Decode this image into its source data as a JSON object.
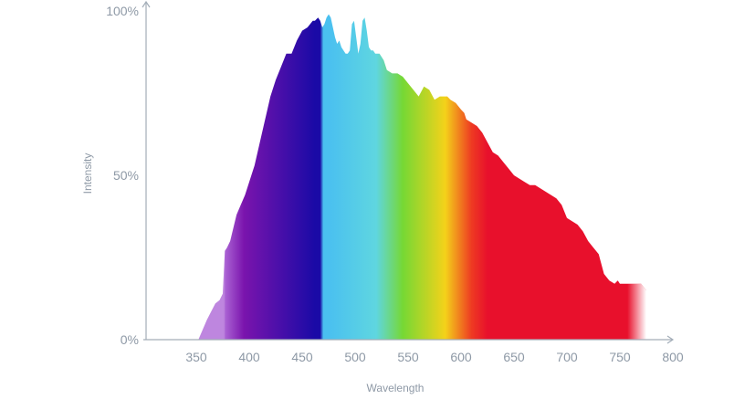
{
  "chart_data": {
    "type": "area",
    "title": "",
    "xlabel": "Wavelength",
    "ylabel": "Intensity",
    "xlim": [
      300,
      800
    ],
    "ylim": [
      0,
      100
    ],
    "x_ticks": [
      350,
      400,
      450,
      500,
      550,
      600,
      650,
      700,
      750,
      800
    ],
    "y_ticks": [
      0,
      50,
      100
    ],
    "y_tick_labels": [
      "0%",
      "50%",
      "100%"
    ],
    "grid": false,
    "legend": "none",
    "fill": "visible spectrum gradient (violet to red)",
    "spectrum_colors": [
      "#b06cd8",
      "#7a14ad",
      "#1a0aa6",
      "#4ac0f0",
      "#5fd6e0",
      "#76d834",
      "#f4d21a",
      "#ee3a22",
      "#e8102c"
    ],
    "series": [
      {
        "x": [
          352,
          360,
          368,
          372,
          375,
          377,
          379,
          382,
          385,
          388,
          392,
          396,
          400,
          405,
          410,
          415,
          420,
          425,
          430,
          435,
          440,
          445,
          450,
          455,
          460,
          462,
          465,
          467,
          469,
          471,
          473,
          475,
          477,
          479,
          481,
          483,
          485,
          487,
          489,
          491,
          493,
          495,
          497,
          499,
          501,
          503,
          505,
          507,
          509,
          511,
          513,
          515,
          517,
          519,
          521,
          523,
          525,
          527,
          530,
          535,
          540,
          545,
          550,
          555,
          560,
          565,
          570,
          575,
          580,
          583,
          585,
          587,
          590,
          595,
          600,
          603,
          605,
          610,
          615,
          620,
          625,
          630,
          635,
          640,
          645,
          650,
          655,
          660,
          665,
          670,
          675,
          680,
          685,
          690,
          695,
          700,
          705,
          710,
          715,
          720,
          725,
          730,
          735,
          740,
          745,
          748,
          750,
          755,
          760,
          765,
          770,
          775
        ],
        "y": [
          0,
          6,
          11,
          12,
          14,
          27,
          28,
          30,
          34,
          38,
          41,
          44,
          48,
          53,
          60,
          67,
          74,
          79,
          83,
          87,
          87,
          91,
          94,
          95,
          97,
          97,
          98,
          97,
          95,
          96,
          98,
          99,
          98,
          95,
          92,
          90,
          91,
          89,
          88,
          87,
          87,
          88,
          96,
          97,
          92,
          87,
          90,
          97,
          98,
          94,
          89,
          88,
          88,
          87,
          87,
          87,
          86,
          85,
          82,
          81,
          81,
          80,
          78,
          76,
          74,
          77,
          76,
          73,
          74,
          74,
          74,
          74,
          73,
          72,
          70,
          69,
          67,
          66,
          65,
          63,
          60,
          57,
          56,
          54,
          52,
          50,
          49,
          48,
          47,
          47,
          46,
          45,
          44,
          43,
          41,
          37,
          36,
          35,
          33,
          30,
          28,
          26,
          20,
          18,
          17,
          18,
          17,
          17,
          17,
          17,
          17,
          15
        ]
      }
    ]
  }
}
